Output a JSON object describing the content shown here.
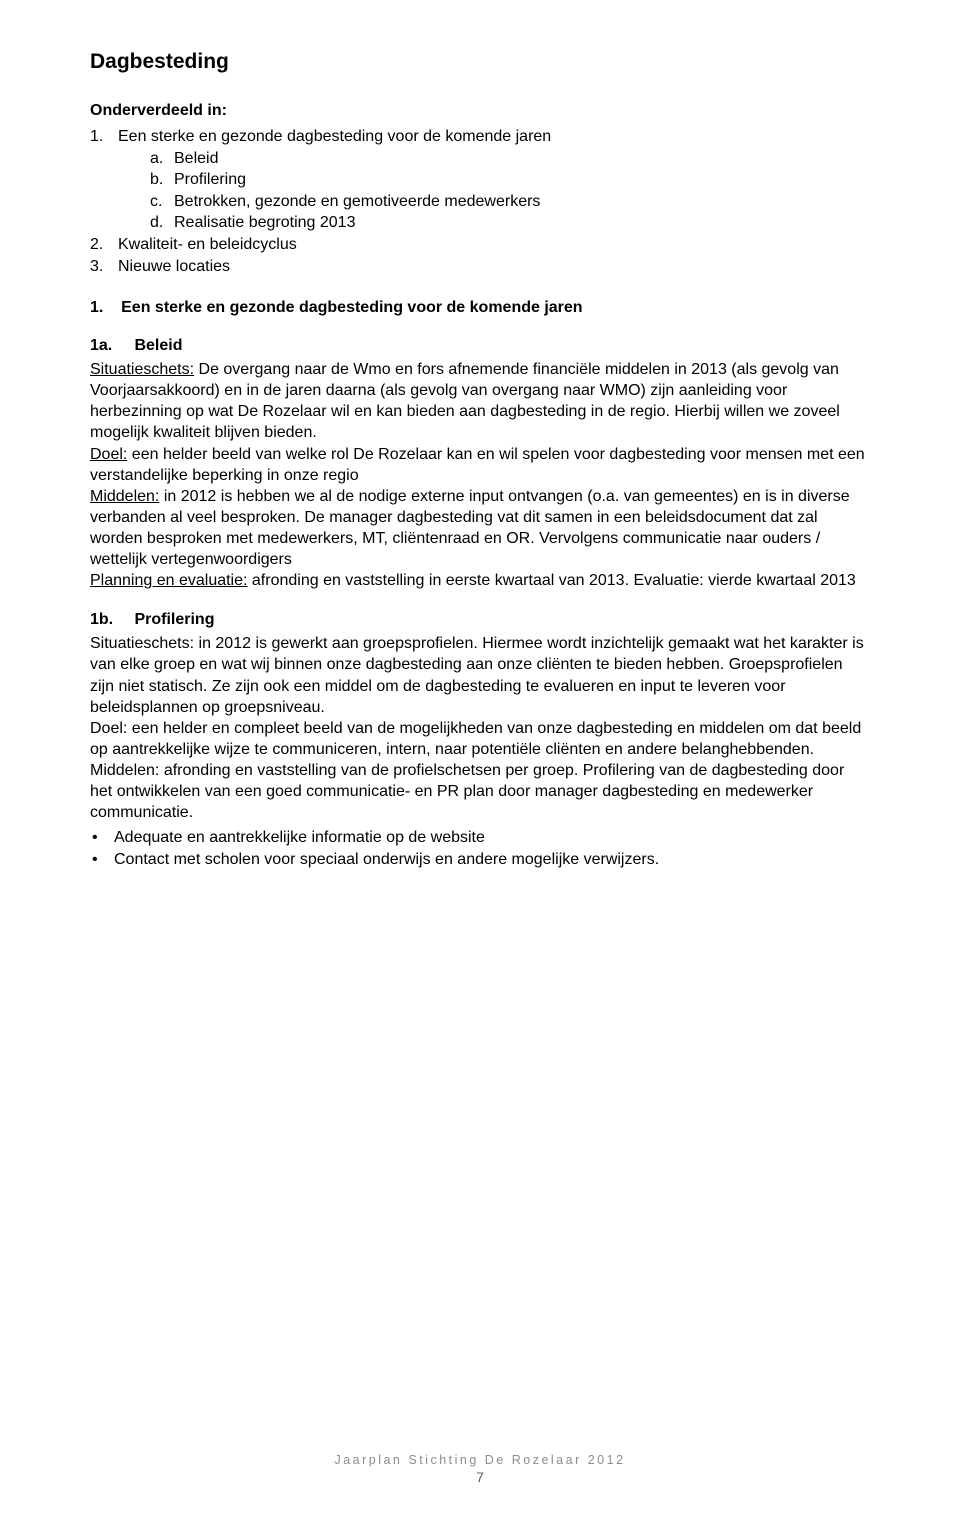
{
  "title": "Dagbesteding",
  "subhead": "Onderverdeeld in:",
  "listNum": [
    {
      "n": "1.",
      "text": "Een sterke en gezonde dagbesteding voor de komende jaren"
    },
    {
      "n": "2.",
      "text": "Kwaliteit- en beleidcyclus"
    },
    {
      "n": "3.",
      "text": "Nieuwe locaties"
    }
  ],
  "listSub": [
    {
      "l": "a.",
      "text": "Beleid"
    },
    {
      "l": "b.",
      "text": "Profilering"
    },
    {
      "l": "c.",
      "text": "Betrokken, gezonde en gemotiveerde medewerkers"
    },
    {
      "l": "d.",
      "text": "Realisatie begroting 2013"
    }
  ],
  "h2_num": "1.",
  "h2_text": "Een sterke en gezonde dagbesteding voor de komende jaren",
  "sec1a": {
    "num": "1a.",
    "title": "Beleid",
    "p1_lead": "Situatieschets:",
    "p1_body": " De overgang naar de Wmo en fors afnemende financiële middelen in 2013 (als gevolg van Voorjaarsakkoord) en in de jaren daarna (als gevolg van overgang naar WMO) zijn aanleiding voor herbezinning op wat De Rozelaar  wil en kan bieden aan dagbesteding  in de regio. Hierbij willen we zoveel mogelijk kwaliteit blijven bieden.",
    "p2_lead": "Doel:",
    "p2_body": " een helder beeld van welke rol De Rozelaar  kan en wil spelen voor dagbesteding voor mensen met een verstandelijke beperking in onze regio",
    "p3_lead": "Middelen:",
    "p3_body": " in 2012 is hebben we al de nodige externe input ontvangen (o.a. van gemeentes) en is in diverse verbanden al veel besproken. De  manager dagbesteding vat dit samen in een beleidsdocument dat zal worden besproken met medewerkers, MT, cliëntenraad en OR. Vervolgens communicatie naar ouders / wettelijk vertegenwoordigers",
    "p4_lead": "Planning en evaluatie:",
    "p4_body": "  afronding en vaststelling in eerste kwartaal van 2013. Evaluatie: vierde kwartaal 2013"
  },
  "sec1b": {
    "num": "1b.",
    "title": "Profilering",
    "p1_lead": "Situatieschets:",
    "p1_body": " in 2012 is gewerkt aan groepsprofielen. Hiermee wordt inzichtelijk gemaakt wat het karakter is van elke groep  en wat wij binnen onze dagbesteding aan onze cliënten te bieden hebben.  Groepsprofielen zijn niet statisch. Ze zijn ook een middel om de dagbesteding te evalueren en input te leveren voor beleidsplannen op groepsniveau.",
    "p2_lead": "Doel:",
    "p2_body": " een helder en compleet beeld van de mogelijkheden van onze dagbesteding en middelen om dat beeld op aantrekkelijke wijze te communiceren, intern, naar potentiële cliënten en andere belanghebbenden.",
    "p3_lead": "Middelen:",
    "p3_body": " afronding en vaststelling van de profielschetsen per groep. Profilering van de dagbesteding door het ontwikkelen van een goed communicatie- en PR plan door manager dagbesteding en medewerker communicatie.",
    "bullets": [
      "Adequate en aantrekkelijke informatie op de website",
      "Contact met scholen voor speciaal onderwijs en andere mogelijke verwijzers."
    ]
  },
  "footer": {
    "text": "Jaarplan Stichting De Rozelaar 2012",
    "page": "7"
  }
}
